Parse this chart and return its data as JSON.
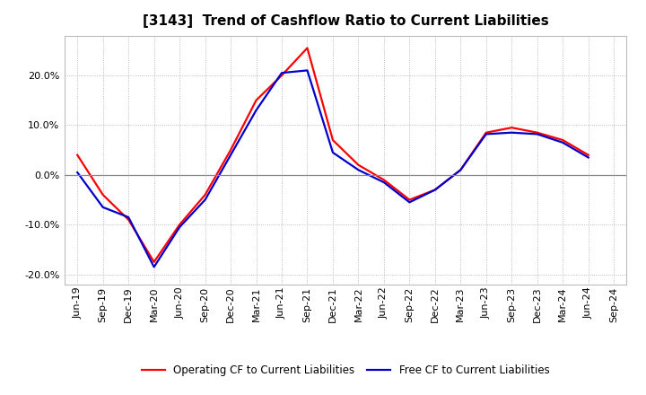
{
  "title": "[3143]  Trend of Cashflow Ratio to Current Liabilities",
  "x_labels": [
    "Jun-19",
    "Sep-19",
    "Dec-19",
    "Mar-20",
    "Jun-20",
    "Sep-20",
    "Dec-20",
    "Mar-21",
    "Jun-21",
    "Sep-21",
    "Dec-21",
    "Mar-22",
    "Jun-22",
    "Sep-22",
    "Dec-22",
    "Mar-23",
    "Jun-23",
    "Sep-23",
    "Dec-23",
    "Mar-24",
    "Jun-24",
    "Sep-24"
  ],
  "operating_cf": [
    0.04,
    -0.04,
    -0.09,
    -0.175,
    -0.1,
    -0.04,
    0.05,
    0.15,
    0.2,
    0.255,
    0.07,
    0.02,
    -0.01,
    -0.05,
    -0.03,
    0.01,
    0.085,
    0.095,
    0.085,
    0.07,
    0.04,
    null
  ],
  "free_cf": [
    0.005,
    -0.065,
    -0.085,
    -0.185,
    -0.105,
    -0.05,
    0.04,
    0.13,
    0.205,
    0.21,
    0.045,
    0.01,
    -0.015,
    -0.055,
    -0.03,
    0.01,
    0.082,
    0.085,
    0.082,
    0.065,
    0.035,
    null
  ],
  "ylim": [
    -0.22,
    0.28
  ],
  "yticks": [
    -0.2,
    -0.1,
    0.0,
    0.1,
    0.2
  ],
  "operating_color": "#FF0000",
  "free_color": "#0000CC",
  "bg_color": "#FFFFFF",
  "plot_bg_color": "#FFFFFF",
  "grid_color": "#AAAAAA",
  "zero_line_color": "#888888",
  "legend_op_label": "Operating CF to Current Liabilities",
  "legend_free_label": "Free CF to Current Liabilities",
  "title_fontsize": 11,
  "tick_fontsize": 8,
  "legend_fontsize": 8.5
}
